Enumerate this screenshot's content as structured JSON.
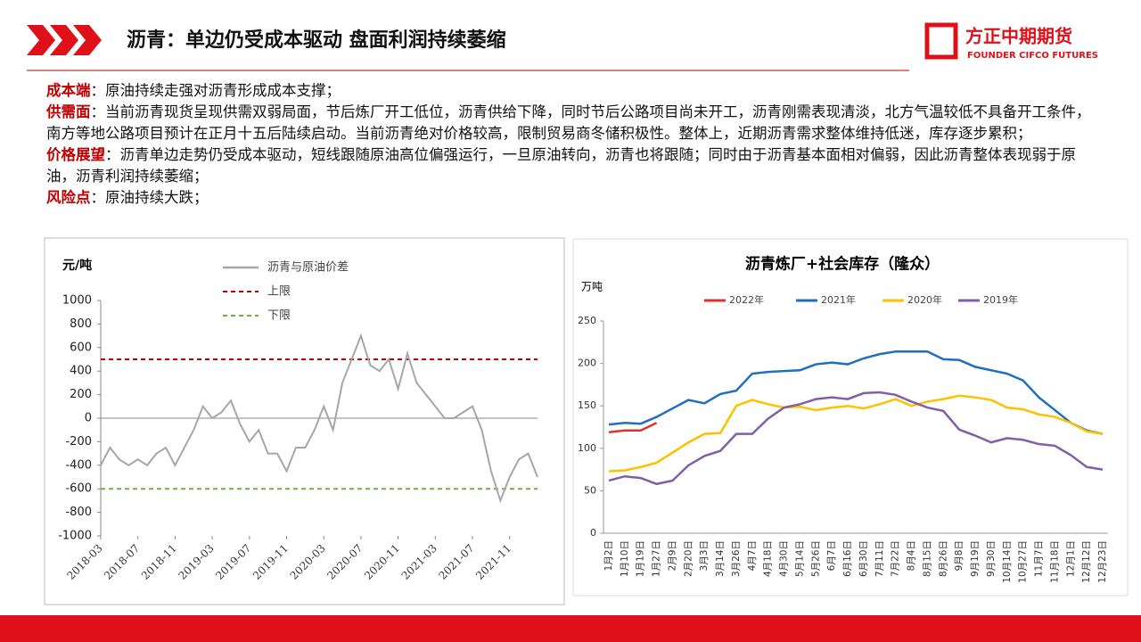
{
  "header": {
    "title": "沥青：单边仍受成本驱动 盘面利润持续萎缩",
    "logo": "方正中期期货",
    "logo_en": "FOUNDER CIFCO FUTURES"
  },
  "points": [
    {
      "label": "成本端",
      "text": "：原油持续走强对沥青形成成本支撑；"
    },
    {
      "label": "供需面",
      "text": "：当前沥青现货呈现供需双弱局面，节后炼厂开工低位，沥青供给下降，同时节后公路项目尚未开工，沥青刚需表现清淡，北方气温较低不具备开工条件，南方等地公路项目预计在正月十五后陆续启动。当前沥青绝对价格较高，限制贸易商冬储积极性。整体上，近期沥青需求整体维持低迷，库存逐步累积；"
    },
    {
      "label": "价格展望",
      "text": "：沥青单边走势仍受成本驱动，短线跟随原油高位偏强运行，一旦原油转向，沥青也将跟随；同时由于沥青基本面相对偏弱，因此沥青整体表现弱于原油，沥青利润持续萎缩；"
    },
    {
      "label": "风险点",
      "text": "：原油持续大跌；"
    }
  ],
  "chart_data": [
    {
      "type": "line",
      "y_label": "元/吨",
      "x": [
        "2018-03",
        "2018-04",
        "2018-05",
        "2018-06",
        "2018-07",
        "2018-08",
        "2018-09",
        "2018-10",
        "2018-11",
        "2018-12",
        "2019-01",
        "2019-02",
        "2019-03",
        "2019-04",
        "2019-05",
        "2019-06",
        "2019-07",
        "2019-08",
        "2019-09",
        "2019-10",
        "2019-11",
        "2019-12",
        "2020-01",
        "2020-02",
        "2020-03",
        "2020-04",
        "2020-05",
        "2020-06",
        "2020-07",
        "2020-08",
        "2020-09",
        "2020-10",
        "2020-11",
        "2020-12",
        "2021-01",
        "2021-02",
        "2021-03",
        "2021-04",
        "2021-05",
        "2021-06",
        "2021-07",
        "2021-08",
        "2021-09",
        "2021-10",
        "2021-11",
        "2021-12",
        "2022-01",
        "2022-02"
      ],
      "series": [
        {
          "name": "沥青与原油价差",
          "color": "#a6a6a6",
          "values": [
            -400,
            -250,
            -350,
            -400,
            -350,
            -400,
            -300,
            -250,
            -400,
            -250,
            -100,
            100,
            0,
            50,
            150,
            -50,
            -200,
            -100,
            -300,
            -300,
            -450,
            -250,
            -250,
            -100,
            100,
            -100,
            300,
            500,
            700,
            450,
            400,
            500,
            250,
            550,
            300,
            200,
            100,
            0,
            0,
            50,
            100,
            -100,
            -450,
            -700,
            -500,
            -350,
            -300,
            -500
          ]
        }
      ],
      "hlines": [
        {
          "name": "上限",
          "color": "#c00000",
          "value": 500
        },
        {
          "name": "下限",
          "color": "#70ad47",
          "value": -600
        }
      ],
      "xlim": [
        "2018-03",
        "2022-02"
      ],
      "xticks": [
        "2018-03",
        "2018-07",
        "2018-11",
        "2019-03",
        "2019-07",
        "2019-11",
        "2020-03",
        "2020-07",
        "2020-11",
        "2021-03",
        "2021-07",
        "2021-11"
      ],
      "ylim": [
        -1000,
        1000
      ],
      "yticks": [
        1000,
        800,
        600,
        400,
        200,
        0,
        -200,
        -400,
        -600,
        -800,
        -1000
      ]
    },
    {
      "type": "line",
      "title": "沥青炼厂+社会库存（隆众）",
      "y_label": "万吨",
      "categories": [
        "1月2日",
        "1月10日",
        "1月19日",
        "1月27日",
        "2月9日",
        "2月20日",
        "3月3日",
        "3月14日",
        "3月26日",
        "4月7日",
        "4月18日",
        "4月30日",
        "5月14日",
        "5月26日",
        "6月7日",
        "6月16日",
        "6月30日",
        "7月11日",
        "7月22日",
        "8月4日",
        "8月15日",
        "8月26日",
        "9月8日",
        "9月19日",
        "9月30日",
        "10月14日",
        "10月27日",
        "11月7日",
        "11月18日",
        "12月1日",
        "12月12日",
        "12月23日"
      ],
      "series": [
        {
          "name": "2022年",
          "color": "#e0322c",
          "values": [
            119,
            121,
            121,
            130,
            null,
            null,
            null,
            null,
            null,
            null,
            null,
            null,
            null,
            null,
            null,
            null,
            null,
            null,
            null,
            null,
            null,
            null,
            null,
            null,
            null,
            null,
            null,
            null,
            null,
            null,
            null,
            null
          ]
        },
        {
          "name": "2021年",
          "color": "#1f6fc0",
          "values": [
            128,
            130,
            129,
            137,
            147,
            157,
            153,
            164,
            168,
            188,
            190,
            191,
            192,
            199,
            201,
            199,
            206,
            211,
            214,
            214,
            214,
            205,
            204,
            196,
            192,
            188,
            180,
            160,
            145,
            130,
            121,
            117
          ]
        },
        {
          "name": "2020年",
          "color": "#ffc000",
          "values": [
            73,
            74,
            78,
            83,
            95,
            107,
            117,
            118,
            150,
            157,
            152,
            148,
            149,
            145,
            148,
            150,
            147,
            152,
            158,
            150,
            155,
            158,
            162,
            160,
            157,
            148,
            146,
            140,
            137,
            130,
            120,
            117
          ]
        },
        {
          "name": "2019年",
          "color": "#7f5fa8",
          "values": [
            62,
            67,
            65,
            58,
            62,
            80,
            91,
            97,
            117,
            117,
            135,
            148,
            152,
            158,
            160,
            158,
            165,
            166,
            163,
            155,
            148,
            144,
            122,
            115,
            107,
            112,
            110,
            105,
            103,
            92,
            78,
            75
          ]
        }
      ],
      "ylim": [
        0,
        250
      ],
      "yticks": [
        0,
        50,
        100,
        150,
        200,
        250
      ]
    }
  ]
}
